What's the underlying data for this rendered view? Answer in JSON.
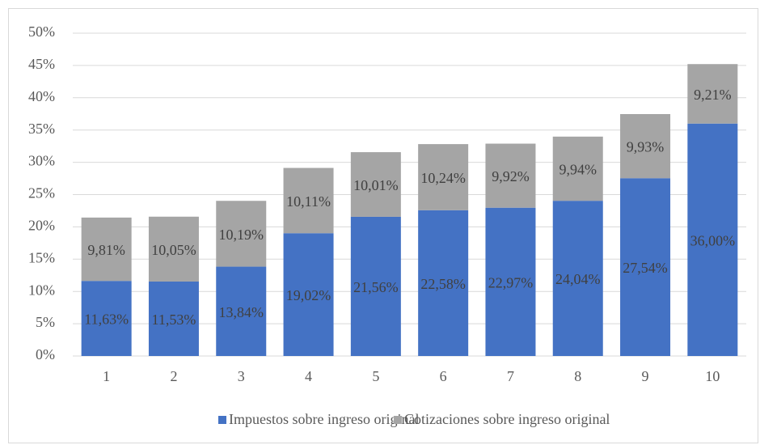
{
  "chart_data": {
    "type": "stacked_bar",
    "categories": [
      "1",
      "2",
      "3",
      "4",
      "5",
      "6",
      "7",
      "8",
      "9",
      "10"
    ],
    "series": [
      {
        "name": "Impuestos sobre ingreso original",
        "color": "#4472c4",
        "values": [
          11.63,
          11.53,
          13.84,
          19.02,
          21.56,
          22.58,
          22.97,
          24.04,
          27.54,
          36.0
        ],
        "value_labels": [
          "11,63%",
          "11,53%",
          "13,84%",
          "19,02%",
          "21,56%",
          "22,58%",
          "22,97%",
          "24,04%",
          "27,54%",
          "36,00%"
        ]
      },
      {
        "name": "Cotizaciones sobre ingreso original",
        "color": "#a5a5a5",
        "values": [
          9.81,
          10.05,
          10.19,
          10.11,
          10.01,
          10.24,
          9.92,
          9.94,
          9.93,
          9.21
        ],
        "value_labels": [
          "9,81%",
          "10,05%",
          "10,19%",
          "10,11%",
          "10,01%",
          "10,24%",
          "9,92%",
          "9,94%",
          "9,93%",
          "9,21%"
        ]
      }
    ],
    "ylim": [
      0,
      50
    ],
    "yticks": [
      {
        "value": 0,
        "label": "0%"
      },
      {
        "value": 5,
        "label": "5%"
      },
      {
        "value": 10,
        "label": "10%"
      },
      {
        "value": 15,
        "label": "15%"
      },
      {
        "value": 20,
        "label": "20%"
      },
      {
        "value": 25,
        "label": "25%"
      },
      {
        "value": 30,
        "label": "30%"
      },
      {
        "value": 35,
        "label": "35%"
      },
      {
        "value": 40,
        "label": "40%"
      },
      {
        "value": 45,
        "label": "45%"
      },
      {
        "value": 50,
        "label": "50%"
      }
    ],
    "grid": true,
    "legend": "bottom"
  }
}
